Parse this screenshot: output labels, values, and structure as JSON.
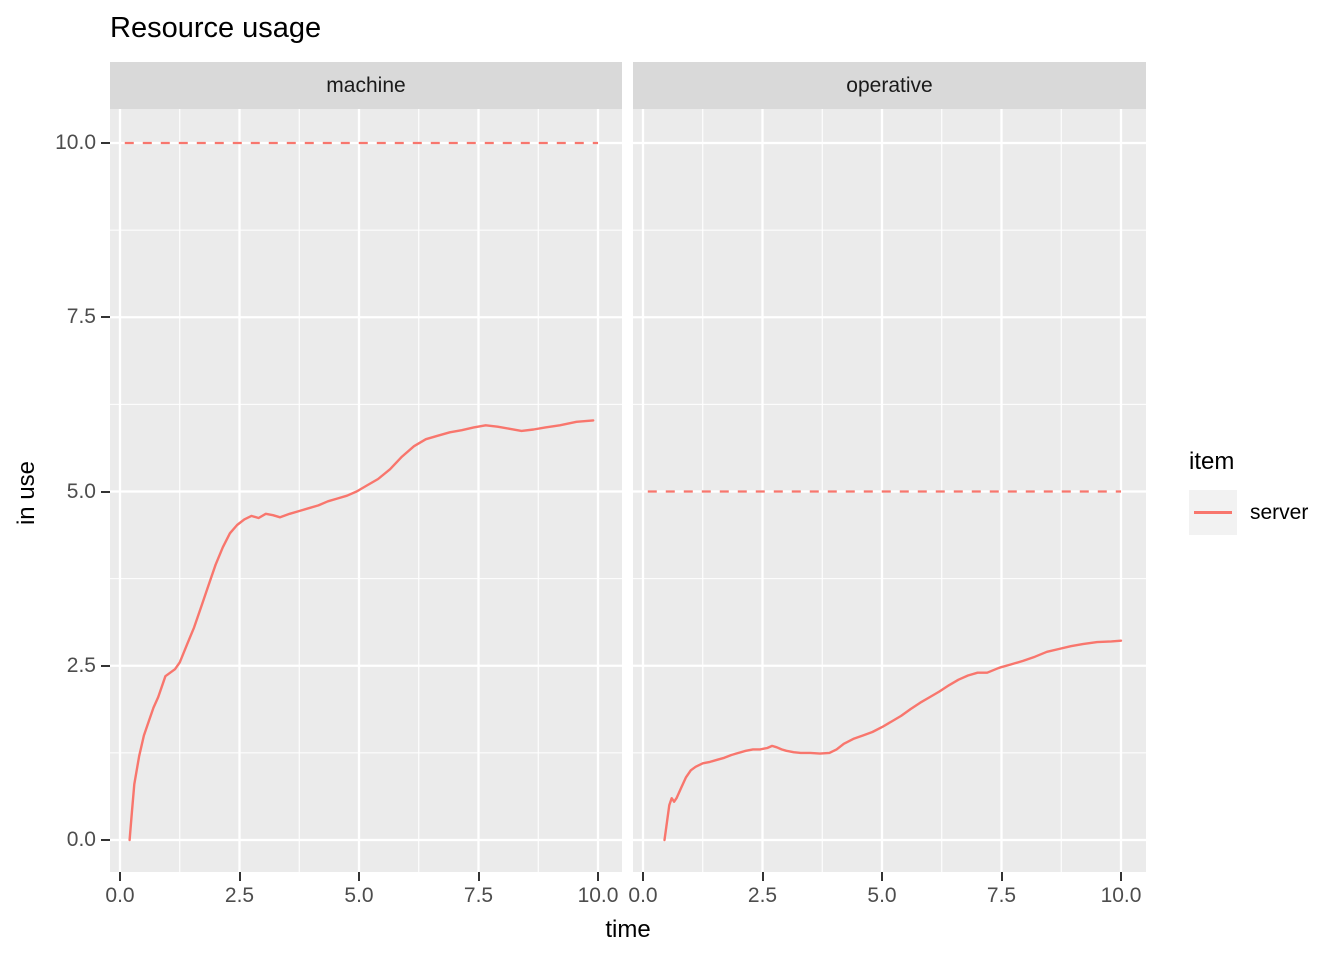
{
  "chart_data": {
    "type": "line",
    "title": "Resource usage",
    "xlabel": "time",
    "ylabel": "in use",
    "xlim": [
      0,
      10
    ],
    "ylim": [
      0,
      10
    ],
    "grid": {
      "major": true,
      "minor": true,
      "minor_values": [
        1.25,
        3.75,
        6.25,
        8.75
      ]
    },
    "xticks": {
      "values": [
        0,
        2.5,
        5,
        7.5,
        10
      ],
      "labels": [
        "0.0",
        "2.5",
        "5.0",
        "7.5",
        "10.0"
      ]
    },
    "yticks": {
      "values": [
        0,
        2.5,
        5,
        7.5,
        10
      ],
      "labels": [
        "0.0",
        "2.5",
        "5.0",
        "7.5",
        "10.0"
      ]
    },
    "legend": {
      "title": "item",
      "position": "right",
      "entries": [
        {
          "label": "server",
          "color": "#F8766D"
        }
      ]
    },
    "facets": [
      {
        "label": "machine",
        "capacity_line": {
          "y": 10,
          "style": "dashed",
          "x0": 0.1,
          "x1": 10.0
        },
        "series": [
          {
            "name": "server",
            "x": [
              0.2,
              0.25,
              0.3,
              0.4,
              0.5,
              0.6,
              0.7,
              0.8,
              0.9,
              0.95,
              1.05,
              1.15,
              1.25,
              1.4,
              1.55,
              1.7,
              1.85,
              2.0,
              2.15,
              2.3,
              2.45,
              2.6,
              2.75,
              2.9,
              3.05,
              3.2,
              3.35,
              3.55,
              3.75,
              3.95,
              4.15,
              4.35,
              4.55,
              4.75,
              4.95,
              5.15,
              5.4,
              5.65,
              5.9,
              6.15,
              6.4,
              6.65,
              6.9,
              7.15,
              7.4,
              7.65,
              7.9,
              8.15,
              8.4,
              8.65,
              8.9,
              9.2,
              9.55,
              9.9
            ],
            "y": [
              0,
              0.4,
              0.8,
              1.2,
              1.5,
              1.7,
              1.9,
              2.05,
              2.25,
              2.35,
              2.4,
              2.45,
              2.55,
              2.8,
              3.05,
              3.35,
              3.65,
              3.95,
              4.2,
              4.4,
              4.52,
              4.6,
              4.65,
              4.62,
              4.68,
              4.66,
              4.63,
              4.68,
              4.72,
              4.76,
              4.8,
              4.86,
              4.9,
              4.94,
              5.0,
              5.08,
              5.18,
              5.32,
              5.5,
              5.65,
              5.75,
              5.8,
              5.85,
              5.88,
              5.92,
              5.95,
              5.93,
              5.9,
              5.87,
              5.89,
              5.92,
              5.95,
              6.0,
              6.02
            ]
          }
        ]
      },
      {
        "label": "operative",
        "capacity_line": {
          "y": 5,
          "style": "dashed",
          "x0": 0.1,
          "x1": 10.0
        },
        "series": [
          {
            "name": "server",
            "x": [
              0.45,
              0.5,
              0.55,
              0.6,
              0.65,
              0.7,
              0.8,
              0.9,
              1.0,
              1.1,
              1.25,
              1.4,
              1.55,
              1.7,
              1.85,
              2.0,
              2.15,
              2.3,
              2.45,
              2.6,
              2.7,
              2.8,
              2.9,
              3.0,
              3.15,
              3.3,
              3.5,
              3.7,
              3.9,
              4.05,
              4.2,
              4.4,
              4.6,
              4.8,
              5.0,
              5.2,
              5.4,
              5.6,
              5.8,
              6.0,
              6.2,
              6.4,
              6.6,
              6.8,
              7.0,
              7.2,
              7.45,
              7.7,
              7.95,
              8.2,
              8.45,
              8.7,
              8.95,
              9.2,
              9.5,
              9.8,
              10.0
            ],
            "y": [
              0,
              0.25,
              0.5,
              0.6,
              0.55,
              0.6,
              0.75,
              0.9,
              1.0,
              1.05,
              1.1,
              1.12,
              1.15,
              1.18,
              1.22,
              1.25,
              1.28,
              1.3,
              1.3,
              1.32,
              1.35,
              1.33,
              1.3,
              1.28,
              1.26,
              1.25,
              1.25,
              1.24,
              1.25,
              1.3,
              1.38,
              1.45,
              1.5,
              1.55,
              1.62,
              1.7,
              1.78,
              1.88,
              1.97,
              2.05,
              2.13,
              2.22,
              2.3,
              2.36,
              2.4,
              2.4,
              2.47,
              2.52,
              2.57,
              2.63,
              2.7,
              2.74,
              2.78,
              2.81,
              2.84,
              2.85,
              2.86
            ]
          }
        ]
      }
    ],
    "colors": {
      "line": "#F8766D",
      "panel_bg": "#EBEBEB",
      "strip_bg": "#D9D9D9",
      "grid": "#FFFFFF",
      "tick_mark": "#333333",
      "tick_text": "#4D4D4D",
      "text": "#000000",
      "legend_key_bg": "#F2F2F2"
    }
  }
}
